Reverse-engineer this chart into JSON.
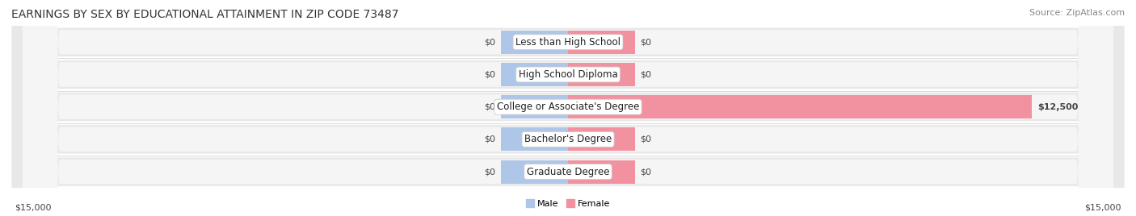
{
  "title": "EARNINGS BY SEX BY EDUCATIONAL ATTAINMENT IN ZIP CODE 73487",
  "source": "Source: ZipAtlas.com",
  "categories": [
    "Less than High School",
    "High School Diploma",
    "College or Associate's Degree",
    "Bachelor's Degree",
    "Graduate Degree"
  ],
  "male_values": [
    0,
    0,
    0,
    0,
    0
  ],
  "female_values": [
    0,
    0,
    12500,
    0,
    0
  ],
  "male_color": "#aec6e8",
  "female_color": "#f2919f",
  "row_bg_color": "#e8e8e8",
  "row_inner_color": "#f5f5f5",
  "x_max": 15000,
  "x_min": -15000,
  "x_left_label": "$15,000",
  "x_right_label": "$15,000",
  "legend_male": "Male",
  "legend_female": "Female",
  "title_fontsize": 10,
  "source_fontsize": 8,
  "label_fontsize": 8,
  "category_fontsize": 8.5,
  "zero_stub": 1800,
  "bar_height": 0.72
}
